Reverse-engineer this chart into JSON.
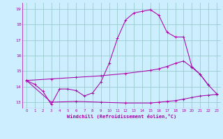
{
  "xlabel": "Windchill (Refroidissement éolien,°C)",
  "bg_color": "#cceeff",
  "line_color": "#aa00aa",
  "grid_color": "#99cccc",
  "xlim": [
    -0.5,
    23.5
  ],
  "ylim": [
    12.6,
    19.4
  ],
  "yticks": [
    13,
    14,
    15,
    16,
    17,
    18,
    19
  ],
  "xticks": [
    0,
    1,
    2,
    3,
    4,
    5,
    6,
    7,
    8,
    9,
    10,
    11,
    12,
    13,
    14,
    15,
    16,
    17,
    18,
    19,
    20,
    21,
    22,
    23
  ],
  "line1_x": [
    0,
    1,
    2,
    3,
    4,
    5,
    6,
    7,
    8,
    9,
    10,
    11,
    12,
    13,
    14,
    15,
    16,
    17,
    18,
    19,
    20,
    21,
    22
  ],
  "line1_y": [
    14.4,
    14.15,
    13.7,
    12.85,
    13.85,
    13.85,
    13.75,
    13.4,
    13.6,
    14.3,
    15.5,
    17.1,
    18.3,
    18.75,
    18.85,
    18.95,
    18.6,
    17.5,
    17.2,
    17.2,
    15.3,
    14.8,
    14.1
  ],
  "line2_x": [
    0,
    3,
    6,
    9,
    12,
    15,
    16,
    17,
    18,
    19,
    20,
    21,
    22,
    23
  ],
  "line2_y": [
    14.4,
    14.5,
    14.6,
    14.7,
    14.85,
    15.05,
    15.15,
    15.3,
    15.5,
    15.65,
    15.25,
    14.8,
    14.1,
    13.55
  ],
  "line3_x": [
    0,
    3,
    6,
    9,
    12,
    15,
    16,
    17,
    18,
    19,
    20,
    21,
    22,
    23
  ],
  "line3_y": [
    14.4,
    13.0,
    13.05,
    13.0,
    12.95,
    12.95,
    13.0,
    13.05,
    13.1,
    13.2,
    13.3,
    13.4,
    13.45,
    13.5
  ]
}
